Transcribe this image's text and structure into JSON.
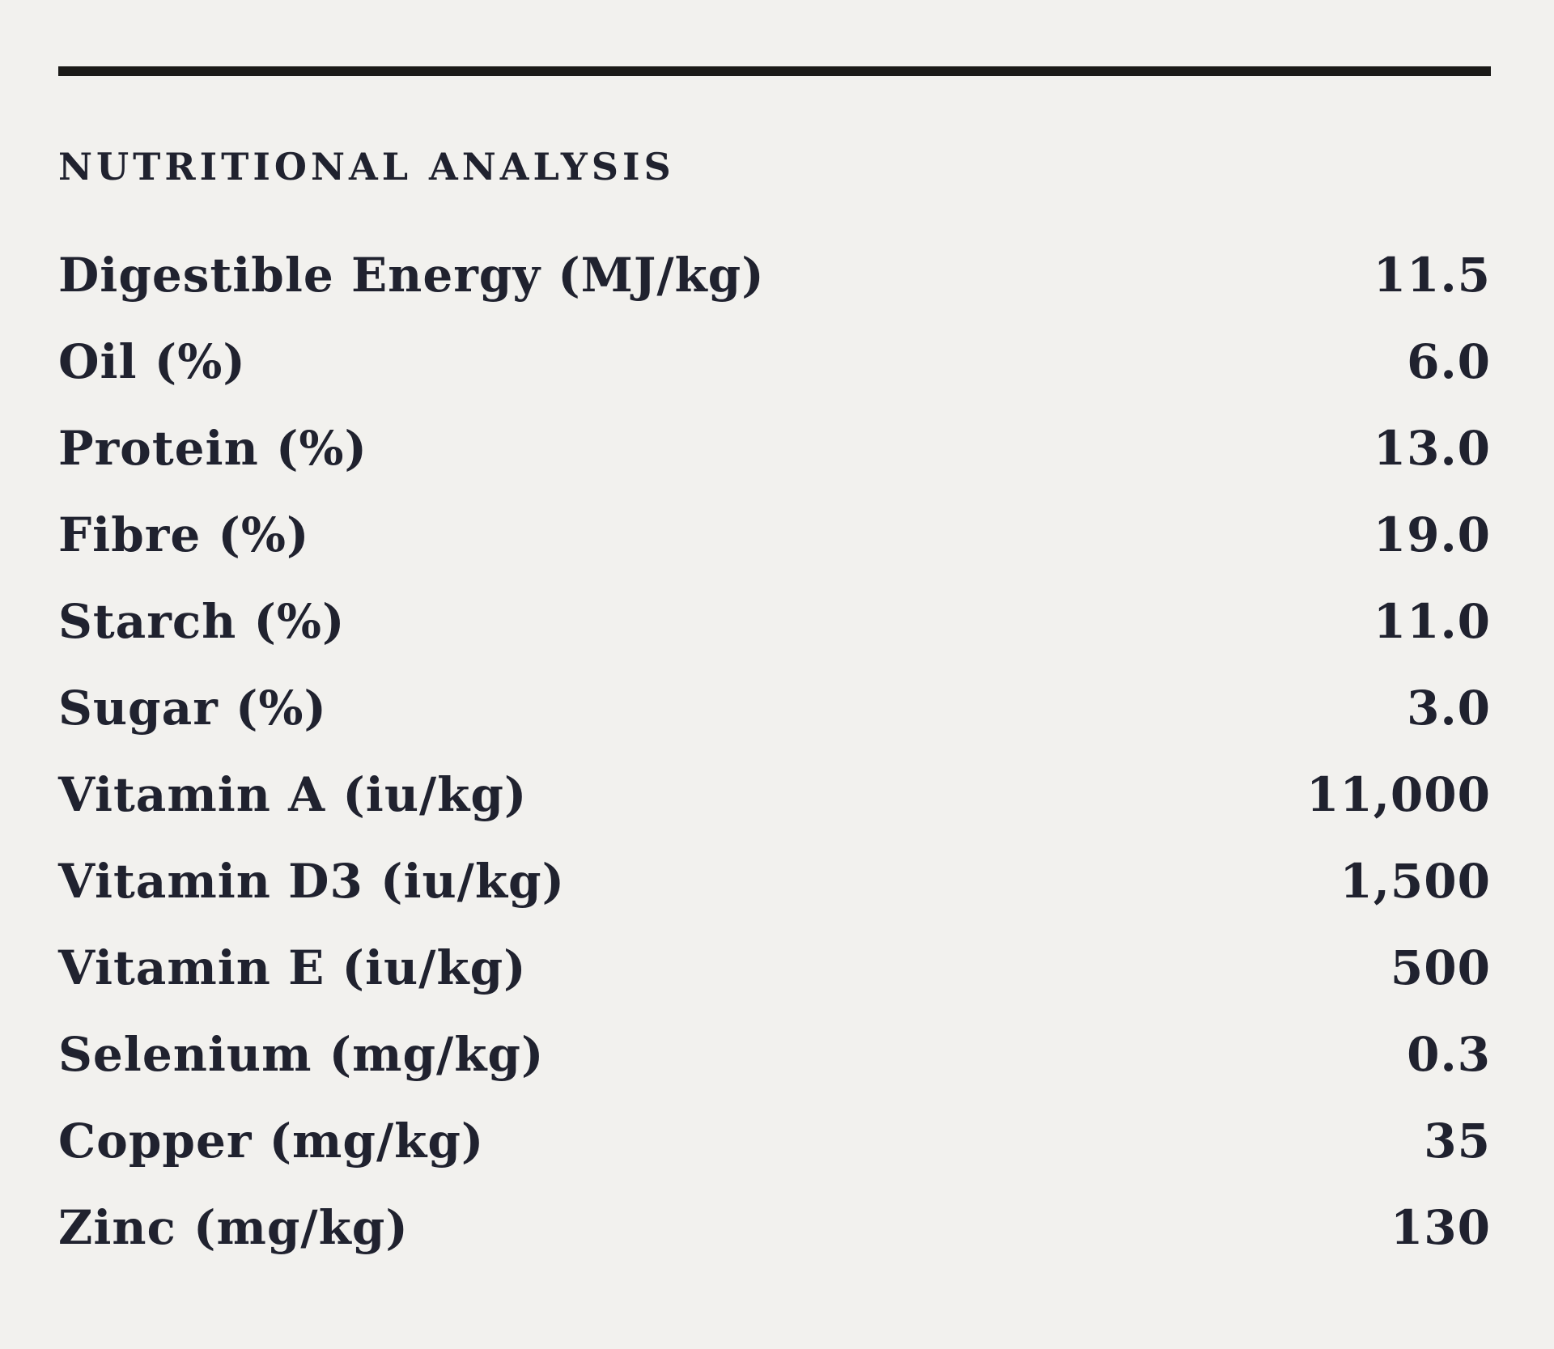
{
  "colors": {
    "background": "#f2f1ee",
    "text": "#20222f",
    "rule": "#1b1a18"
  },
  "section": {
    "title": "NUTRITIONAL ANALYSIS",
    "rows": [
      {
        "label": "Digestible Energy (MJ/kg)",
        "value": "11.5"
      },
      {
        "label": "Oil (%)",
        "value": "6.0"
      },
      {
        "label": "Protein (%)",
        "value": "13.0"
      },
      {
        "label": "Fibre (%)",
        "value": "19.0"
      },
      {
        "label": "Starch (%)",
        "value": "11.0"
      },
      {
        "label": "Sugar (%)",
        "value": "3.0"
      },
      {
        "label": "Vitamin A (iu/kg)",
        "value": "11,000"
      },
      {
        "label": "Vitamin D3 (iu/kg)",
        "value": "1,500"
      },
      {
        "label": "Vitamin E (iu/kg)",
        "value": "500"
      },
      {
        "label": "Selenium (mg/kg)",
        "value": "0.3"
      },
      {
        "label": "Copper (mg/kg)",
        "value": "35"
      },
      {
        "label": "Zinc (mg/kg)",
        "value": "130"
      }
    ]
  }
}
